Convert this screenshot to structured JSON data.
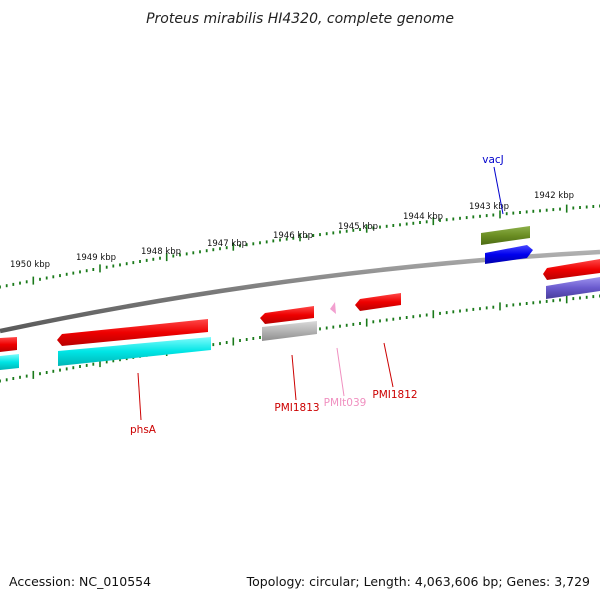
{
  "title": "Proteus mirabilis HI4320, complete genome",
  "footer": {
    "accession": "Accession: NC_010554",
    "summary": "Topology: circular; Length: 4,063,606 bp; Genes: 3,729"
  },
  "ticks": [
    "1950 kbp",
    "1949 kbp",
    "1948 kbp",
    "1947 kbp",
    "1946 kbp",
    "1945 kbp",
    "1944 kbp",
    "1943 kbp",
    "1942 kbp"
  ],
  "genes": [
    {
      "name": "phsA",
      "color": "#cc0000"
    },
    {
      "name": "PMI1813",
      "color": "#cc0000"
    },
    {
      "name": "PMIt039",
      "color": "#f090c0"
    },
    {
      "name": "PMI1812",
      "color": "#cc0000"
    },
    {
      "name": "vacJ",
      "color": "#0000cc"
    }
  ],
  "colors": {
    "backbone": "#808080",
    "tick": "#1a7a1a",
    "cds_red": "#ee0000",
    "cds_cyan": "#00e5e5",
    "cds_gray": "#b4b4b4",
    "cds_green": "#6b8e23",
    "cds_blue": "#0000ee",
    "cds_purple": "#6a5acd",
    "trna_pink": "#f2a0d0"
  }
}
